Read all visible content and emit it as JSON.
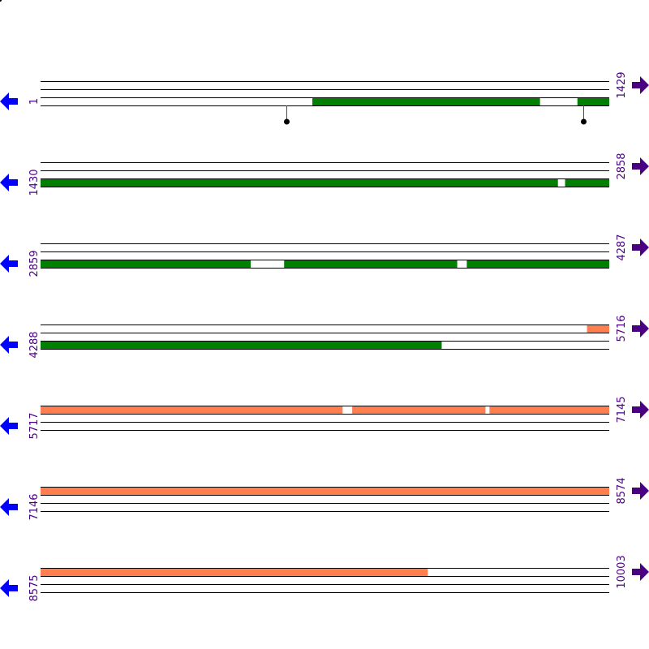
{
  "colors": {
    "frame_a": "#008000",
    "frame_b": "#ff7f50",
    "left_arrow": "#0000ff",
    "right_arrow": "#4b0082",
    "label": "#4b0082",
    "marker_stem": "#ff0000",
    "marker_dot": "#000000"
  },
  "rows": [
    {
      "start": "1",
      "end": "1429",
      "s": 1,
      "e": 1429,
      "segments": [
        {
          "lane": 2,
          "from": 684,
          "to": 1256,
          "color": "frame_a"
        },
        {
          "lane": 2,
          "from": 1350,
          "to": 1429,
          "color": "frame_a"
        }
      ],
      "markers": [
        619,
        1364
      ]
    },
    {
      "start": "1430",
      "end": "2858",
      "s": 1430,
      "e": 2858,
      "segments": [
        {
          "lane": 2,
          "from": 1430,
          "to": 2730,
          "color": "frame_a"
        },
        {
          "lane": 2,
          "from": 2748,
          "to": 2858,
          "color": "frame_a"
        }
      ],
      "markers": []
    },
    {
      "start": "2859",
      "end": "4287",
      "s": 2859,
      "e": 4287,
      "segments": [
        {
          "lane": 2,
          "from": 2859,
          "to": 3387,
          "color": "frame_a"
        },
        {
          "lane": 2,
          "from": 3471,
          "to": 3906,
          "color": "frame_a"
        },
        {
          "lane": 2,
          "from": 3930,
          "to": 4287,
          "color": "frame_a"
        }
      ],
      "markers": []
    },
    {
      "start": "4288",
      "end": "5716",
      "s": 4288,
      "e": 5716,
      "segments": [
        {
          "lane": 0,
          "from": 5661,
          "to": 5716,
          "color": "frame_b"
        },
        {
          "lane": 2,
          "from": 4288,
          "to": 5296,
          "color": "frame_a"
        }
      ],
      "markers": []
    },
    {
      "start": "5717",
      "end": "7145",
      "s": 5717,
      "e": 7145,
      "segments": [
        {
          "lane": 0,
          "from": 5717,
          "to": 6476,
          "color": "frame_b"
        },
        {
          "lane": 0,
          "from": 6500,
          "to": 6835,
          "color": "frame_b"
        },
        {
          "lane": 0,
          "from": 6845,
          "to": 7145,
          "color": "frame_b"
        }
      ],
      "markers": []
    },
    {
      "start": "7146",
      "end": "8574",
      "s": 7146,
      "e": 8574,
      "segments": [
        {
          "lane": 0,
          "from": 7146,
          "to": 8574,
          "color": "frame_b"
        }
      ],
      "markers": []
    },
    {
      "start": "8575",
      "end": "10003",
      "s": 8575,
      "e": 10003,
      "segments": [
        {
          "lane": 0,
          "from": 8575,
          "to": 9548,
          "color": "frame_b"
        }
      ],
      "markers": []
    }
  ]
}
